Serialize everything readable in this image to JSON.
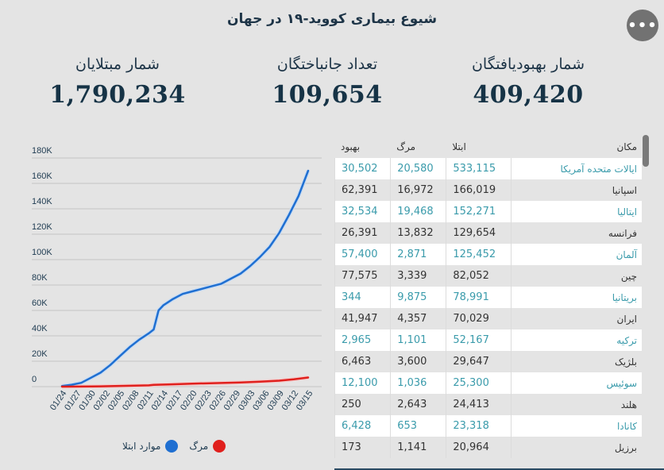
{
  "title": "شیوع بیماری کووید-۱۹ در جهان",
  "more_button": {
    "icon": "ellipsis-icon",
    "label": "•••"
  },
  "stats": {
    "recovered": {
      "label": "شمار بهبودیافتگان",
      "value": "409,420"
    },
    "deaths": {
      "label": "تعداد جانباختگان",
      "value": "109,654"
    },
    "cases": {
      "label": "شمار مبتلایان",
      "value": "1,790,234"
    }
  },
  "table": {
    "headers": {
      "location": "مکان",
      "cases": "ابتلا",
      "deaths": "مرگ",
      "recovered": "بهبود"
    },
    "rows": [
      {
        "location": "ایالات متحده آمریکا",
        "cases": "533,115",
        "deaths": "20,580",
        "recovered": "30,502"
      },
      {
        "location": "اسپانیا",
        "cases": "166,019",
        "deaths": "16,972",
        "recovered": "62,391"
      },
      {
        "location": "ایتالیا",
        "cases": "152,271",
        "deaths": "19,468",
        "recovered": "32,534"
      },
      {
        "location": "فرانسه",
        "cases": "129,654",
        "deaths": "13,832",
        "recovered": "26,391"
      },
      {
        "location": "آلمان",
        "cases": "125,452",
        "deaths": "2,871",
        "recovered": "57,400"
      },
      {
        "location": "چین",
        "cases": "82,052",
        "deaths": "3,339",
        "recovered": "77,575"
      },
      {
        "location": "بریتانیا",
        "cases": "78,991",
        "deaths": "9,875",
        "recovered": "344"
      },
      {
        "location": "ایران",
        "cases": "70,029",
        "deaths": "4,357",
        "recovered": "41,947"
      },
      {
        "location": "ترکیه",
        "cases": "52,167",
        "deaths": "1,101",
        "recovered": "2,965"
      },
      {
        "location": "بلژیک",
        "cases": "29,647",
        "deaths": "3,600",
        "recovered": "6,463"
      },
      {
        "location": "سوئیس",
        "cases": "25,300",
        "deaths": "1,036",
        "recovered": "12,100"
      },
      {
        "location": "هلند",
        "cases": "24,413",
        "deaths": "2,643",
        "recovered": "250"
      },
      {
        "location": "کانادا",
        "cases": "23,318",
        "deaths": "653",
        "recovered": "6,428"
      },
      {
        "location": "برزیل",
        "cases": "20,964",
        "deaths": "1,141",
        "recovered": "173"
      }
    ]
  },
  "colors": {
    "highlight_text": "#3a9bab",
    "cases_line": "#1f6fd1",
    "deaths_line": "#e0201d"
  },
  "chart_data": {
    "type": "line",
    "title": "",
    "xlabel": "",
    "ylabel": "",
    "ylim": [
      0,
      180000
    ],
    "yticks": [
      0,
      20000,
      40000,
      60000,
      80000,
      100000,
      120000,
      140000,
      160000,
      180000
    ],
    "ytick_labels": [
      "0",
      "20K",
      "40K",
      "60K",
      "80K",
      "100K",
      "120K",
      "140K",
      "160K",
      "180K"
    ],
    "xtick_labels": [
      "01/24",
      "01/27",
      "01/30",
      "02/02",
      "02/05",
      "02/08",
      "02/11",
      "02/14",
      "02/17",
      "02/20",
      "02/23",
      "02/26",
      "02/29",
      "03/03",
      "03/06",
      "03/09",
      "03/12",
      "03/15"
    ],
    "x_day_range": [
      0,
      51
    ],
    "grid": true,
    "legend": {
      "position": "bottom",
      "entries": [
        "مرگ",
        "موارد ابتلا"
      ]
    },
    "series": [
      {
        "name": "موارد ابتلا",
        "color": "#1f6fd1",
        "points": [
          [
            0,
            500
          ],
          [
            2,
            1500
          ],
          [
            4,
            3000
          ],
          [
            6,
            7000
          ],
          [
            8,
            11000
          ],
          [
            10,
            17000
          ],
          [
            12,
            24000
          ],
          [
            14,
            31000
          ],
          [
            16,
            37000
          ],
          [
            18,
            42000
          ],
          [
            19,
            45000
          ],
          [
            20,
            60000
          ],
          [
            21,
            64000
          ],
          [
            23,
            69000
          ],
          [
            25,
            73000
          ],
          [
            27,
            75000
          ],
          [
            29,
            77000
          ],
          [
            31,
            79000
          ],
          [
            33,
            81000
          ],
          [
            35,
            85000
          ],
          [
            37,
            89000
          ],
          [
            39,
            95000
          ],
          [
            41,
            102000
          ],
          [
            43,
            110000
          ],
          [
            45,
            121000
          ],
          [
            47,
            135000
          ],
          [
            49,
            150000
          ],
          [
            51,
            170000
          ]
        ]
      },
      {
        "name": "مرگ",
        "color": "#e0201d",
        "points": [
          [
            0,
            20
          ],
          [
            6,
            100
          ],
          [
            10,
            400
          ],
          [
            14,
            700
          ],
          [
            18,
            1000
          ],
          [
            19,
            1400
          ],
          [
            22,
            1700
          ],
          [
            27,
            2400
          ],
          [
            33,
            2900
          ],
          [
            37,
            3300
          ],
          [
            41,
            3900
          ],
          [
            45,
            4700
          ],
          [
            48,
            5800
          ],
          [
            51,
            7200
          ]
        ]
      }
    ]
  }
}
